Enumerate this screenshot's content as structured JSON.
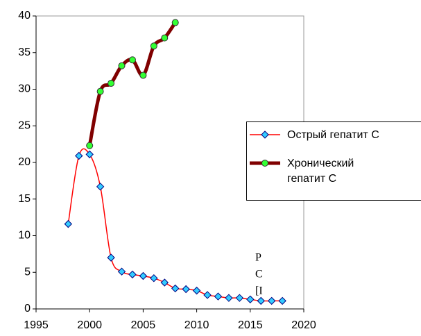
{
  "chart_data": {
    "type": "line",
    "x": [
      1998,
      1999,
      2000,
      2001,
      2002,
      2003,
      2004,
      2005,
      2006,
      2007,
      2008,
      2009,
      2010,
      2011,
      2012,
      2013,
      2014,
      2015,
      2016,
      2017,
      2018
    ],
    "series": [
      {
        "name": "Острый гепатит С",
        "color": "#ff0000",
        "marker_color": "#33ccff",
        "values": [
          11.6,
          20.9,
          21.1,
          16.7,
          7.0,
          5.1,
          4.7,
          4.5,
          4.2,
          3.6,
          2.8,
          2.7,
          2.5,
          1.9,
          1.7,
          1.5,
          1.5,
          1.3,
          1.1,
          1.1,
          1.1
        ]
      },
      {
        "name": "Хронический гепатит С",
        "color": "#800000",
        "marker_color": "#33ff33",
        "values": [
          null,
          null,
          22.3,
          29.7,
          30.8,
          33.2,
          34.0,
          31.9,
          35.9,
          37.0,
          39.1,
          null,
          null,
          null,
          null,
          null,
          null,
          null,
          null,
          null,
          null
        ]
      }
    ],
    "xlim": [
      1995,
      2020
    ],
    "xticks": [
      1995,
      2000,
      2005,
      2010,
      2015,
      2020
    ],
    "ylim": [
      0,
      40
    ],
    "yticks": [
      0,
      5,
      10,
      15,
      20,
      25,
      30,
      35,
      40
    ],
    "grid": false,
    "annotations": [
      "Р",
      "С",
      "[I"
    ]
  }
}
